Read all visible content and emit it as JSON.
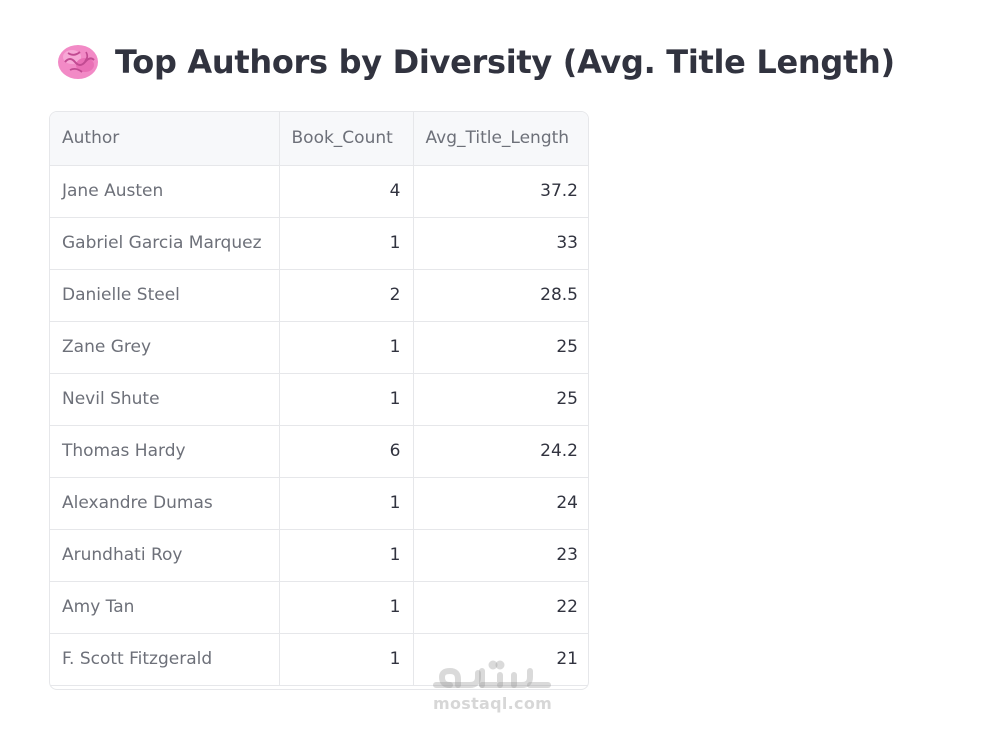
{
  "heading": {
    "icon": "brain-icon",
    "title": "Top Authors by Diversity (Avg. Title Length)"
  },
  "table": {
    "columns": [
      "Author",
      "Book_Count",
      "Avg_Title_Length"
    ],
    "rows": [
      {
        "author": "Jane Austen",
        "book_count": "4",
        "avg_title_length": "37.2"
      },
      {
        "author": "Gabriel Garcia Marquez",
        "book_count": "1",
        "avg_title_length": "33"
      },
      {
        "author": "Danielle Steel",
        "book_count": "2",
        "avg_title_length": "28.5"
      },
      {
        "author": "Zane Grey",
        "book_count": "1",
        "avg_title_length": "25"
      },
      {
        "author": "Nevil Shute",
        "book_count": "1",
        "avg_title_length": "25"
      },
      {
        "author": "Thomas Hardy",
        "book_count": "6",
        "avg_title_length": "24.2"
      },
      {
        "author": "Alexandre Dumas",
        "book_count": "1",
        "avg_title_length": "24"
      },
      {
        "author": "Arundhati Roy",
        "book_count": "1",
        "avg_title_length": "23"
      },
      {
        "author": "Amy Tan",
        "book_count": "1",
        "avg_title_length": "22"
      },
      {
        "author": "F. Scott Fitzgerald",
        "book_count": "1",
        "avg_title_length": "21"
      }
    ]
  },
  "watermark": {
    "logo_text": "مستقل",
    "site": "mostaql.com"
  },
  "colors": {
    "heading_text": "#31333f",
    "header_bg": "#f7f8fa",
    "muted_text": "#6d7079",
    "value_text": "#31333f",
    "border": "#e6e7ea",
    "brain_pink": "#f28ac6"
  }
}
